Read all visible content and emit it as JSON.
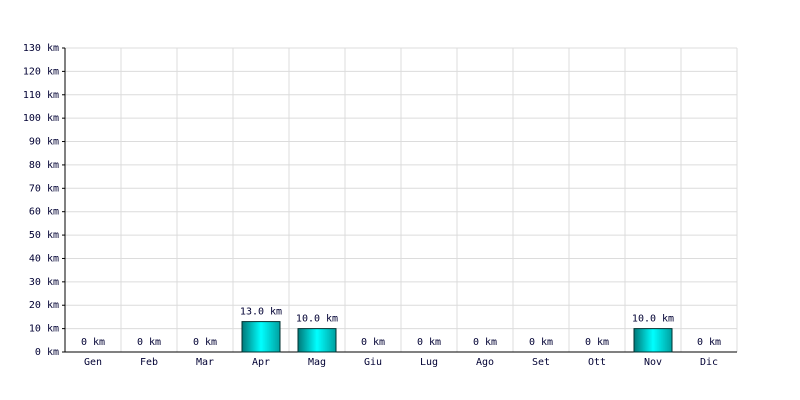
{
  "chart_data": {
    "type": "bar",
    "categories": [
      "Gen",
      "Feb",
      "Mar",
      "Apr",
      "Mag",
      "Giu",
      "Lug",
      "Ago",
      "Set",
      "Ott",
      "Nov",
      "Dic"
    ],
    "values": [
      0,
      0,
      0,
      13,
      10,
      0,
      0,
      0,
      0,
      0,
      10,
      0
    ],
    "value_labels": [
      "0 km",
      "0 km",
      "0 km",
      "13.0 km",
      "10.0 km",
      "0 km",
      "0 km",
      "0 km",
      "0 km",
      "0 km",
      "10.0 km",
      "0 km"
    ],
    "color": "#00c8c8",
    "ylim": [
      0,
      130
    ],
    "yticks": [
      {
        "value": 0,
        "label": "0 km"
      },
      {
        "value": 10,
        "label": "10 km"
      },
      {
        "value": 20,
        "label": "20 km"
      },
      {
        "value": 30,
        "label": "30 km"
      },
      {
        "value": 40,
        "label": "40 km"
      },
      {
        "value": 50,
        "label": "50 km"
      },
      {
        "value": 60,
        "label": "60 km"
      },
      {
        "value": 70,
        "label": "70 km"
      },
      {
        "value": 80,
        "label": "80 km"
      },
      {
        "value": 90,
        "label": "90 km"
      },
      {
        "value": 100,
        "label": "100 km"
      },
      {
        "value": 110,
        "label": "110 km"
      },
      {
        "value": 120,
        "label": "120 km"
      },
      {
        "value": 130,
        "label": "130 km"
      }
    ],
    "grid": true
  }
}
